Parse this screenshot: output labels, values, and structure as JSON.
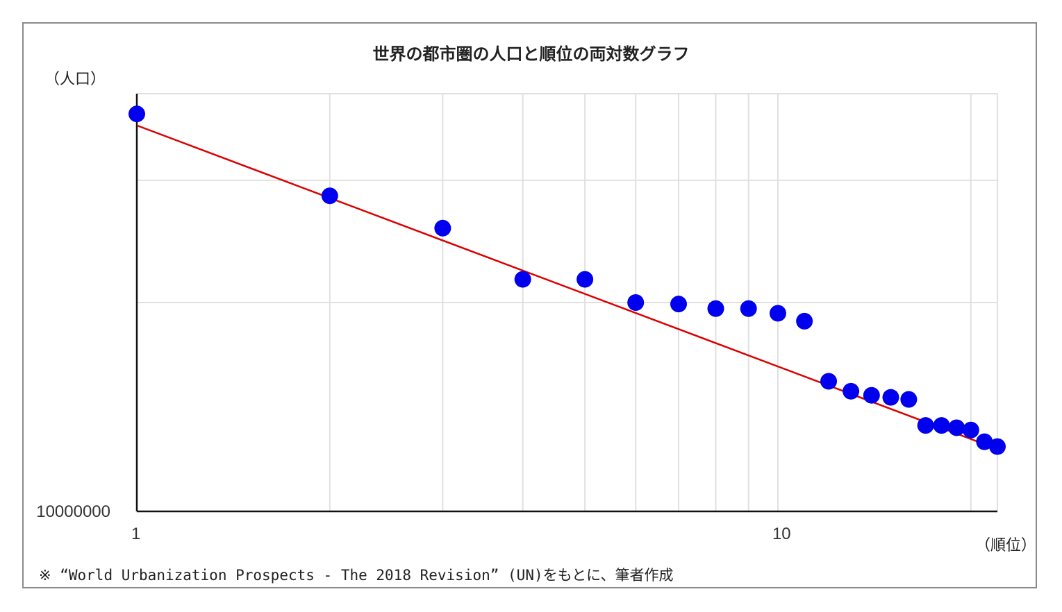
{
  "chart_data": {
    "type": "scatter",
    "title": "世界の都市圏の人口と順位の両対数グラフ",
    "ylabel": "（人口）",
    "xlabel": "（順位）",
    "x_scale": "log",
    "y_scale": "log",
    "xlim": [
      1,
      22
    ],
    "ylim": [
      10000000,
      40000000
    ],
    "x_ticks": [
      {
        "value": 1,
        "label": "1"
      },
      {
        "value": 10,
        "label": "10"
      }
    ],
    "y_ticks": [
      {
        "value": 10000000,
        "label": "10000000"
      }
    ],
    "grid": true,
    "note": "※ “World Urbanization Prospects - The 2018 Revision” (UN)をもとに、筆者作成",
    "colors": {
      "points": "#0000ee",
      "trendline": "#dd0000",
      "grid": "#e0e0e0",
      "axis": "#111111",
      "frame": "#8a8a8a"
    },
    "series": [
      {
        "type": "scatter",
        "points": [
          {
            "x": 1,
            "y": 37400000
          },
          {
            "x": 2,
            "y": 28500000
          },
          {
            "x": 3,
            "y": 25600000
          },
          {
            "x": 4,
            "y": 21600000
          },
          {
            "x": 5,
            "y": 21600000
          },
          {
            "x": 6,
            "y": 20000000
          },
          {
            "x": 7,
            "y": 19900000
          },
          {
            "x": 8,
            "y": 19600000
          },
          {
            "x": 9,
            "y": 19600000
          },
          {
            "x": 10,
            "y": 19300000
          },
          {
            "x": 11,
            "y": 18800000
          },
          {
            "x": 12,
            "y": 15400000
          },
          {
            "x": 13,
            "y": 14900000
          },
          {
            "x": 14,
            "y": 14700000
          },
          {
            "x": 15,
            "y": 14600000
          },
          {
            "x": 16,
            "y": 14500000
          },
          {
            "x": 17,
            "y": 13300000
          },
          {
            "x": 18,
            "y": 13300000
          },
          {
            "x": 19,
            "y": 13200000
          },
          {
            "x": 20,
            "y": 13100000
          },
          {
            "x": 21,
            "y": 12600000
          },
          {
            "x": 22,
            "y": 12400000
          }
        ]
      },
      {
        "type": "trendline",
        "points": [
          {
            "x": 1,
            "y": 36000000
          },
          {
            "x": 22,
            "y": 12300000
          }
        ]
      }
    ]
  }
}
